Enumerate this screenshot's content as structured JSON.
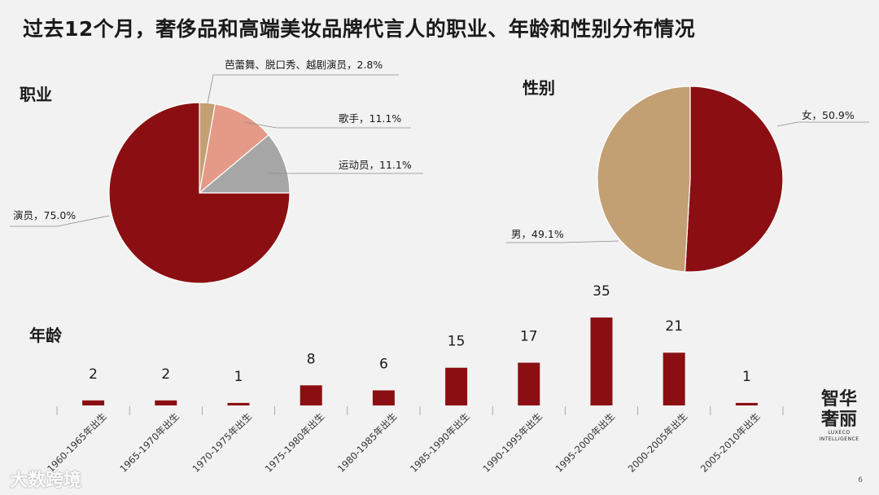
{
  "title": "过去12个月，奢侈品和高端美妆品牌代言人的职业、年龄和性别分布情况",
  "sections": {
    "occupation": "职业",
    "gender": "性别",
    "age": "年龄"
  },
  "colors": {
    "dark_red": "#8b0f12",
    "tan": "#c2a074",
    "salmon": "#e49a86",
    "gray": "#a6a6a6",
    "tick": "#9a9a9a"
  },
  "chart_data": [
    {
      "type": "pie",
      "title": "职业",
      "slices": [
        {
          "label": "芭蕾舞、脱口秀、越剧演员",
          "value": 2.8,
          "text": "芭蕾舞、脱口秀、越剧演员，2.8%"
        },
        {
          "label": "歌手",
          "value": 11.1,
          "text": "歌手，11.1%"
        },
        {
          "label": "运动员",
          "value": 11.1,
          "text": "运动员，11.1%"
        },
        {
          "label": "演员",
          "value": 75.0,
          "text": "演员，75.0%"
        }
      ]
    },
    {
      "type": "pie",
      "title": "性别",
      "slices": [
        {
          "label": "女",
          "value": 50.9,
          "text": "女，50.9%"
        },
        {
          "label": "男",
          "value": 49.1,
          "text": "男，49.1%"
        }
      ]
    },
    {
      "type": "bar",
      "title": "年龄",
      "categories": [
        "1960-1965年出生",
        "1965-1970年出生",
        "1970-1975年出生",
        "1975-1980年出生",
        "1980-1985年出生",
        "1985-1990年出生",
        "1990-1995年出生",
        "1995-2000年出生",
        "2000-2005年出生",
        "2005-2010年出生"
      ],
      "values": [
        2,
        2,
        1,
        8,
        6,
        15,
        17,
        35,
        21,
        1
      ]
    }
  ],
  "logo": {
    "line1": "智华",
    "line2": "奢丽",
    "line3": "LUXECO",
    "line4": "INTELLIGENCE"
  },
  "watermark": "大数跨境",
  "page_number": "6"
}
